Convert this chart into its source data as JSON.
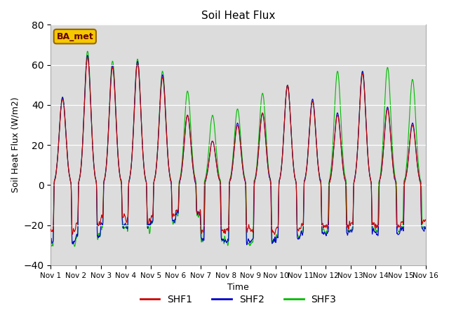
{
  "title": "Soil Heat Flux",
  "ylabel": "Soil Heat Flux (W/m2)",
  "xlabel": "Time",
  "xlim_days": 15,
  "ylim": [
    -40,
    80
  ],
  "yticks": [
    -40,
    -20,
    0,
    20,
    40,
    60,
    80
  ],
  "bg_color": "#dcdcdc",
  "line_colors": {
    "SHF1": "#cc0000",
    "SHF2": "#0000cc",
    "SHF3": "#00bb00"
  },
  "legend_label": "BA_met",
  "legend_box_facecolor": "#f5c800",
  "legend_box_edgecolor": "#996600",
  "legend_text_color": "#660000",
  "n_points_per_day": 144,
  "n_days": 15,
  "day_peak_amplitudes_shf1": [
    43,
    64,
    59,
    61,
    54,
    35,
    22,
    30,
    36,
    50,
    42,
    35,
    56,
    38,
    30
  ],
  "day_peak_amplitudes_shf2": [
    44,
    65,
    60,
    62,
    55,
    35,
    22,
    31,
    36,
    50,
    43,
    36,
    57,
    39,
    31
  ],
  "day_peak_amplitudes_shf3": [
    44,
    67,
    62,
    63,
    57,
    47,
    35,
    38,
    46,
    50,
    42,
    57,
    57,
    59,
    53
  ],
  "night_level_shf1": [
    -23,
    -19,
    -15,
    -18,
    -15,
    -13,
    -23,
    -22,
    -23,
    -22,
    -20,
    -20,
    -20,
    -21,
    -18
  ],
  "night_level_shf2": [
    -28,
    -25,
    -20,
    -21,
    -18,
    -14,
    -27,
    -28,
    -28,
    -26,
    -24,
    -24,
    -23,
    -24,
    -22
  ],
  "night_level_shf3": [
    -30,
    -26,
    -21,
    -22,
    -19,
    -15,
    -28,
    -29,
    -28,
    -25,
    -23,
    -23,
    -22,
    -23,
    -21
  ]
}
